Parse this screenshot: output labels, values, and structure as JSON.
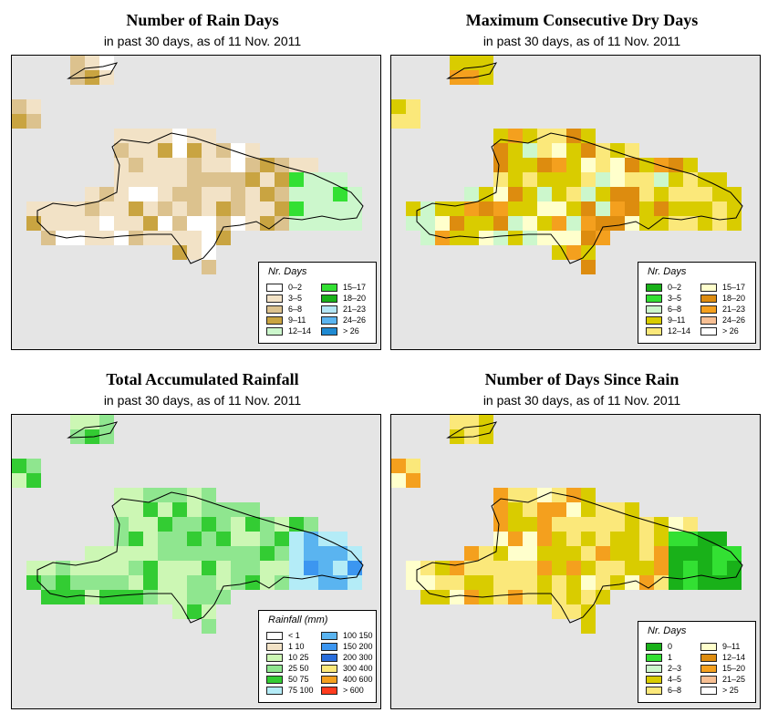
{
  "panels": [
    {
      "title": "Number of Rain Days",
      "subtitle": "in past 30 days, as of  11 Nov. 2011",
      "legend": {
        "title": "Nr. Days",
        "items": [
          {
            "label": "0–2",
            "color": "#ffffff"
          },
          {
            "label": "3–5",
            "color": "#f2e2c6"
          },
          {
            "label": "6–8",
            "color": "#dcc28e"
          },
          {
            "label": "9–11",
            "color": "#c9a441"
          },
          {
            "label": "12–14",
            "color": "#ccf7cc"
          },
          {
            "label": "15–17",
            "color": "#33e033"
          },
          {
            "label": "18–20",
            "color": "#19b119"
          },
          {
            "label": "21–23",
            "color": "#b4e6f5"
          },
          {
            "label": "24–26",
            "color": "#5ab4f0"
          },
          {
            "label": "> 26",
            "color": "#1f8ad2"
          }
        ]
      }
    },
    {
      "title": "Maximum Consecutive Dry Days",
      "subtitle": "in past 30 days, as of  11 Nov. 2011",
      "legend": {
        "title": "Nr. Days",
        "items": [
          {
            "label": "0–2",
            "color": "#19b119"
          },
          {
            "label": "3–5",
            "color": "#33e033"
          },
          {
            "label": "6–8",
            "color": "#ccf7cc"
          },
          {
            "label": "9–11",
            "color": "#d9cc00"
          },
          {
            "label": "12–14",
            "color": "#fbe87a"
          },
          {
            "label": "15–17",
            "color": "#ffffcc"
          },
          {
            "label": "18–20",
            "color": "#dd8c0f"
          },
          {
            "label": "21–23",
            "color": "#f4a01e"
          },
          {
            "label": "24–26",
            "color": "#f7bf93"
          },
          {
            "label": "> 26",
            "color": "#ffffff"
          }
        ]
      }
    },
    {
      "title": "Total Accumulated Rainfall",
      "subtitle": "in past 30 days, as of  11 Nov. 2011",
      "legend": {
        "title": "Rainfall (mm)",
        "items": [
          {
            "label": "< 1",
            "color": "#ffffff"
          },
          {
            "label": "1    10",
            "color": "#f2e2c6"
          },
          {
            "label": "10    25",
            "color": "#ccf7b4"
          },
          {
            "label": "25    50",
            "color": "#8fe68f"
          },
          {
            "label": "50    75",
            "color": "#33cc33"
          },
          {
            "label": "75   100",
            "color": "#b4ecf7"
          },
          {
            "label": "100   150",
            "color": "#5ab4f0"
          },
          {
            "label": "150   200",
            "color": "#3c96f0"
          },
          {
            "label": "200   300",
            "color": "#2a6edc"
          },
          {
            "label": "300   400",
            "color": "#fbe87a"
          },
          {
            "label": "400   600",
            "color": "#f4a01e"
          },
          {
            "label": "> 600",
            "color": "#ff3c1e"
          }
        ]
      }
    },
    {
      "title": "Number of Days Since Rain",
      "subtitle": "in past 30 days, as of  11 Nov. 2011",
      "legend": {
        "title": "Nr. Days",
        "items": [
          {
            "label": "0",
            "color": "#19b119"
          },
          {
            "label": "1",
            "color": "#33e033"
          },
          {
            "label": "2–3",
            "color": "#ccf7cc"
          },
          {
            "label": "4–5",
            "color": "#d9cc00"
          },
          {
            "label": "6–8",
            "color": "#fbe87a"
          },
          {
            "label": "9–11",
            "color": "#ffffcc"
          },
          {
            "label": "12–14",
            "color": "#dd8c0f"
          },
          {
            "label": "15–20",
            "color": "#f4a01e"
          },
          {
            "label": "21–25",
            "color": "#f7bf93"
          },
          {
            "label": "> 25",
            "color": "#ffffff"
          }
        ]
      }
    }
  ]
}
